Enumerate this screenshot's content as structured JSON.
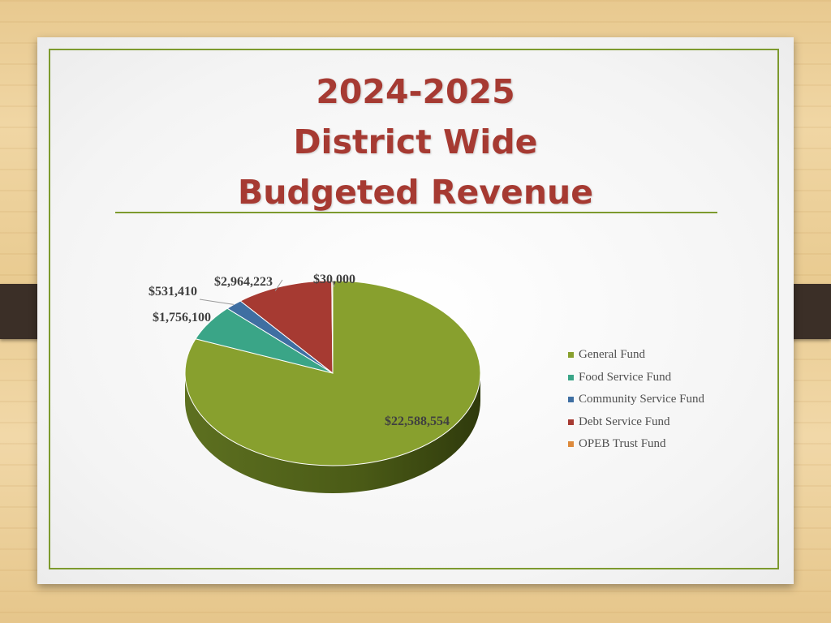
{
  "slide": {
    "title_lines": [
      "2024-2025",
      "District Wide",
      "Budgeted Revenue"
    ]
  },
  "chart_data": {
    "type": "pie",
    "title": "2024-2025 District Wide Budgeted Revenue",
    "legend_position": "right",
    "slices": [
      {
        "label": "General Fund",
        "value": 22588554,
        "display": "$22,588,554",
        "color": "#88a02e"
      },
      {
        "label": "Food Service Fund",
        "value": 1756100,
        "display": "$1,756,100",
        "color": "#3aa587"
      },
      {
        "label": "Community Service Fund",
        "value": 531410,
        "display": "$531,410",
        "color": "#3f6fa2"
      },
      {
        "label": "Debt Service Fund",
        "value": 2964223,
        "display": "$2,964,223",
        "color": "#a63a32"
      },
      {
        "label": "OPEB Trust Fund",
        "value": 30000,
        "display": "$30,000",
        "color": "#dd8a3c"
      }
    ]
  }
}
